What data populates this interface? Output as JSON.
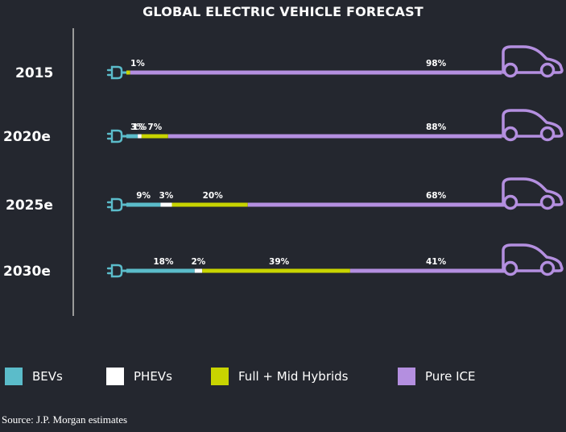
{
  "title": "GLOBAL ELECTRIC VEHICLE FORECAST",
  "chart_data": {
    "type": "bar",
    "stacked": true,
    "orientation": "horizontal",
    "title": "GLOBAL ELECTRIC VEHICLE FORECAST",
    "categories": [
      "2015",
      "2020e",
      "2025e",
      "2030e"
    ],
    "series": [
      {
        "name": "BEVs",
        "color": "#5bbcca",
        "values": [
          0,
          3,
          9,
          18
        ],
        "labels": [
          "",
          "3%",
          "9%",
          "18%"
        ]
      },
      {
        "name": "PHEVs",
        "color": "#ffffff",
        "values": [
          0,
          1,
          3,
          2
        ],
        "labels": [
          "",
          "1%",
          "3%",
          "2%"
        ]
      },
      {
        "name": "Full + Mid Hybrids",
        "color": "#c8d400",
        "values": [
          1,
          7,
          20,
          39
        ],
        "labels": [
          "1%",
          "7%",
          "20%",
          "39%"
        ]
      },
      {
        "name": "Pure ICE",
        "color": "#b48fe0",
        "values": [
          98,
          88,
          68,
          41
        ],
        "labels": [
          "98%",
          "88%",
          "68%",
          "41%"
        ]
      }
    ],
    "unit": "%",
    "icons": {
      "start": "plug-icon",
      "end": "car-icon"
    }
  },
  "legend": [
    {
      "label": "BEVs",
      "color": "#5bbcca"
    },
    {
      "label": "PHEVs",
      "color": "#ffffff"
    },
    {
      "label": "Full + Mid Hybrids",
      "color": "#c8d400"
    },
    {
      "label": "Pure ICE",
      "color": "#b48fe0"
    }
  ],
  "source": "Source: J.P. Morgan estimates"
}
